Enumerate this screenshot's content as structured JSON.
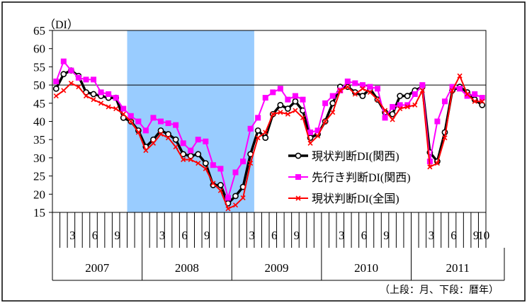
{
  "chart_data": {
    "type": "line",
    "y_unit_label": "（DI）",
    "ylim": [
      15,
      65
    ],
    "yticks": [
      15,
      20,
      25,
      30,
      35,
      40,
      45,
      50,
      55,
      60,
      65
    ],
    "reference_line": 50,
    "shaded_recession": {
      "from": "2007-11",
      "to": "2009-03",
      "color": "#99ccff"
    },
    "x_months": [
      "2007-01",
      "2007-02",
      "2007-03",
      "2007-04",
      "2007-05",
      "2007-06",
      "2007-07",
      "2007-08",
      "2007-09",
      "2007-10",
      "2007-11",
      "2007-12",
      "2008-01",
      "2008-02",
      "2008-03",
      "2008-04",
      "2008-05",
      "2008-06",
      "2008-07",
      "2008-08",
      "2008-09",
      "2008-10",
      "2008-11",
      "2008-12",
      "2009-01",
      "2009-02",
      "2009-03",
      "2009-04",
      "2009-05",
      "2009-06",
      "2009-07",
      "2009-08",
      "2009-09",
      "2009-10",
      "2009-11",
      "2009-12",
      "2010-01",
      "2010-02",
      "2010-03",
      "2010-04",
      "2010-05",
      "2010-06",
      "2010-07",
      "2010-08",
      "2010-09",
      "2010-10",
      "2010-11",
      "2010-12",
      "2011-01",
      "2011-02",
      "2011-03",
      "2011-04",
      "2011-05",
      "2011-06",
      "2011-07",
      "2011-08",
      "2011-09",
      "2011-10"
    ],
    "month_tick_labels": [
      "3",
      "6",
      "9"
    ],
    "last_month_label": "10",
    "years": [
      "2007",
      "2008",
      "2009",
      "2010",
      "2011"
    ],
    "series": [
      {
        "name": "現状判断DI(関西)",
        "color": "#000000",
        "marker": "circle",
        "values": [
          49,
          53,
          54,
          52.5,
          48,
          47.5,
          47,
          46.5,
          46.5,
          41,
          40,
          37.5,
          33,
          35,
          37.5,
          36.5,
          35,
          31,
          30.5,
          31,
          28.5,
          22.5,
          22.5,
          17.5,
          19.5,
          22,
          31,
          37.5,
          35.5,
          42,
          44.5,
          43.5,
          45.5,
          43,
          35.5,
          36.5,
          40,
          45,
          49.5,
          49.5,
          48,
          47,
          49,
          46,
          42.5,
          42,
          47,
          47,
          48.5,
          49.5,
          31.5,
          29,
          37,
          48.5,
          49.5,
          48,
          46,
          44.5
        ]
      },
      {
        "name": "先行き判断DI(関西)",
        "color": "#ff00ff",
        "marker": "square",
        "values": [
          51,
          56.5,
          54,
          52,
          51.5,
          51.5,
          48,
          47.5,
          46.5,
          43.5,
          41.5,
          40,
          37.5,
          41,
          40,
          39.5,
          39,
          34,
          32,
          35,
          34.5,
          28,
          27,
          19,
          26,
          29,
          38,
          41,
          46.5,
          48,
          49,
          46,
          47,
          46,
          37,
          37.5,
          45,
          47,
          48.5,
          51,
          50.5,
          50,
          49.5,
          49,
          41,
          44,
          44.5,
          44.5,
          47.5,
          50,
          29,
          40,
          45.5,
          49.5,
          49,
          47,
          47.5,
          46.5
        ]
      },
      {
        "name": "現状判断DI(全国)",
        "color": "#ff0000",
        "marker": "x",
        "values": [
          47,
          48.5,
          50.5,
          49.5,
          47,
          46,
          45,
          44,
          43.5,
          42,
          40,
          37,
          32,
          34,
          36.5,
          35.5,
          33,
          29.5,
          29.5,
          28.5,
          27,
          23,
          21,
          16,
          17,
          19,
          28.5,
          35.5,
          37,
          42,
          42.5,
          42,
          43,
          41,
          34,
          36,
          40,
          42.5,
          48.5,
          49.5,
          47.5,
          49,
          48,
          46,
          43,
          40.5,
          43.5,
          44,
          44.5,
          48.5,
          27.5,
          28.5,
          35.5,
          48.5,
          52.5,
          47.5,
          45.5,
          45.5
        ]
      }
    ],
    "legend_position": "right-middle",
    "note": "（上段：月、下段：暦年）"
  }
}
